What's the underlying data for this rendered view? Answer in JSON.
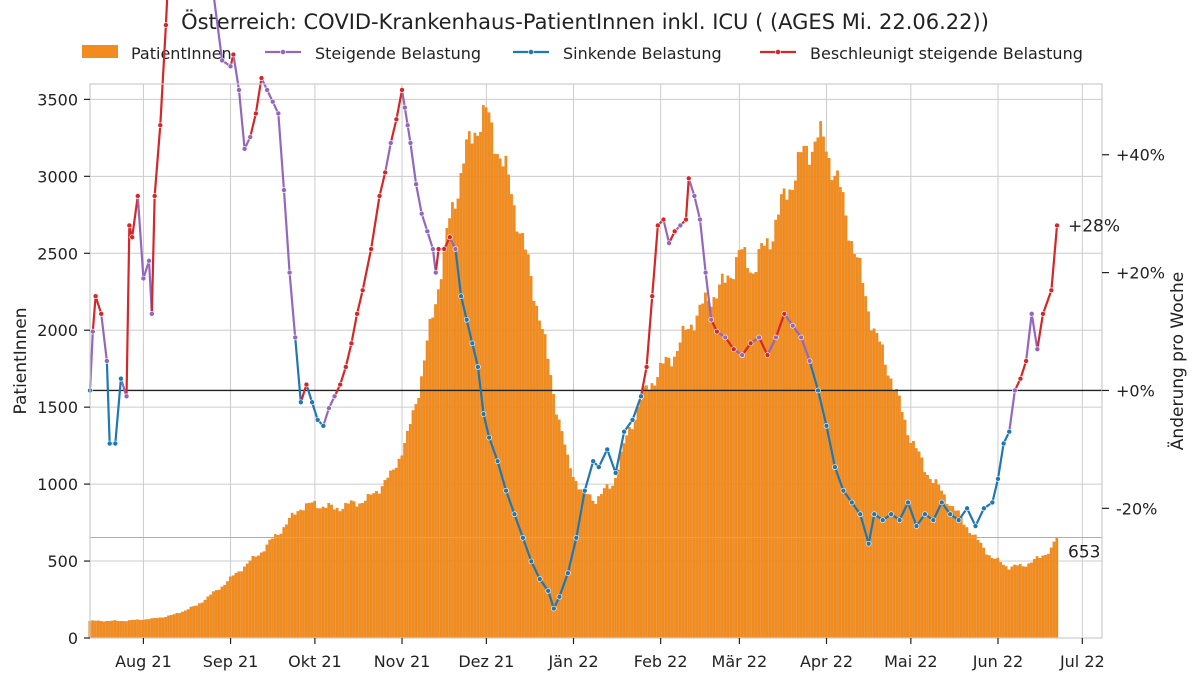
{
  "chart_data": {
    "type": "bar+line",
    "title": "Österreich: COVID-Krankenhaus-PatientInnen inkl. ICU ( (AGES Mi. 22.06.22))",
    "ylabel_left": "PatientInnen",
    "ylabel_right": "Änderung pro Woche",
    "ylim_left": [
      0,
      3600
    ],
    "ylim_right_percent": [
      -42,
      52
    ],
    "legend": {
      "placement": "top",
      "entries": [
        {
          "label": "PatientInnen",
          "kind": "bar",
          "color": "#f28c1e"
        },
        {
          "label": "Steigende Belastung",
          "kind": "line",
          "color": "#9467bd"
        },
        {
          "label": "Sinkende Belastung",
          "kind": "line",
          "color": "#1f77b4"
        },
        {
          "label": "Beschleunigt steigende Belastung",
          "kind": "line",
          "color": "#d62728"
        }
      ]
    },
    "colors": {
      "bars": "#f28c1e",
      "bar_edge": "#e07b10",
      "steigend": "#9467bd",
      "sinkend": "#1f77b4",
      "beschleunigt": "#d62728",
      "zero_line": "#222222",
      "current_line": "#f0a040",
      "grid": "#cccccc"
    },
    "x_start_date": "2021-07-13",
    "x_end_date": "2022-07-08",
    "last_data_date": "2022-06-22",
    "x_ticks": [
      {
        "label": "Aug 21",
        "date": "2021-08-01"
      },
      {
        "label": "Sep 21",
        "date": "2021-09-01"
      },
      {
        "label": "Okt 21",
        "date": "2021-10-01"
      },
      {
        "label": "Nov 21",
        "date": "2021-11-01"
      },
      {
        "label": "Dez 21",
        "date": "2021-12-01"
      },
      {
        "label": "Jän 22",
        "date": "2022-01-01"
      },
      {
        "label": "Feb 22",
        "date": "2022-02-01"
      },
      {
        "label": "Mär 22",
        "date": "2022-03-01"
      },
      {
        "label": "Apr 22",
        "date": "2022-04-01"
      },
      {
        "label": "Mai 22",
        "date": "2022-05-01"
      },
      {
        "label": "Jun 22",
        "date": "2022-06-01"
      },
      {
        "label": "Jul 22",
        "date": "2022-07-01"
      }
    ],
    "y_ticks_left": [
      {
        "value": 0,
        "label": "0"
      },
      {
        "value": 500,
        "label": "500"
      },
      {
        "value": 1000,
        "label": "1000"
      },
      {
        "value": 1500,
        "label": "1500"
      },
      {
        "value": 2000,
        "label": "2000"
      },
      {
        "value": 2500,
        "label": "2500"
      },
      {
        "value": 3000,
        "label": "3000"
      },
      {
        "value": 3500,
        "label": "3500"
      }
    ],
    "y_ticks_right": [
      {
        "value": -20,
        "label": "-20%"
      },
      {
        "value": 0,
        "label": "+0%"
      },
      {
        "value": 20,
        "label": "+20%"
      },
      {
        "value": 40,
        "label": "+40%"
      }
    ],
    "bar_anchors": [
      [
        "2021-07-13",
        110
      ],
      [
        "2021-07-25",
        110
      ],
      [
        "2021-08-05",
        125
      ],
      [
        "2021-08-12",
        150
      ],
      [
        "2021-08-20",
        210
      ],
      [
        "2021-08-28",
        320
      ],
      [
        "2021-09-05",
        450
      ],
      [
        "2021-09-12",
        560
      ],
      [
        "2021-09-20",
        720
      ],
      [
        "2021-09-26",
        850
      ],
      [
        "2021-10-01",
        870
      ],
      [
        "2021-10-08",
        840
      ],
      [
        "2021-10-14",
        870
      ],
      [
        "2021-10-20",
        900
      ],
      [
        "2021-10-28",
        1050
      ],
      [
        "2021-11-03",
        1300
      ],
      [
        "2021-11-08",
        1700
      ],
      [
        "2021-11-13",
        2200
      ],
      [
        "2021-11-18",
        2700
      ],
      [
        "2021-11-23",
        3100
      ],
      [
        "2021-11-28",
        3350
      ],
      [
        "2021-12-01",
        3400
      ],
      [
        "2021-12-05",
        3200
      ],
      [
        "2021-12-10",
        2900
      ],
      [
        "2021-12-15",
        2500
      ],
      [
        "2021-12-20",
        2100
      ],
      [
        "2021-12-25",
        1600
      ],
      [
        "2021-12-30",
        1150
      ],
      [
        "2022-01-04",
        950
      ],
      [
        "2022-01-09",
        900
      ],
      [
        "2022-01-15",
        1000
      ],
      [
        "2022-01-20",
        1300
      ],
      [
        "2022-01-25",
        1550
      ],
      [
        "2022-01-31",
        1720
      ],
      [
        "2022-02-06",
        1850
      ],
      [
        "2022-02-12",
        2050
      ],
      [
        "2022-02-18",
        2200
      ],
      [
        "2022-02-24",
        2300
      ],
      [
        "2022-03-01",
        2500
      ],
      [
        "2022-03-06",
        2400
      ],
      [
        "2022-03-12",
        2600
      ],
      [
        "2022-03-18",
        2900
      ],
      [
        "2022-03-24",
        3150
      ],
      [
        "2022-03-29",
        3250
      ],
      [
        "2022-04-01",
        3200
      ],
      [
        "2022-04-06",
        2900
      ],
      [
        "2022-04-12",
        2450
      ],
      [
        "2022-04-18",
        2000
      ],
      [
        "2022-04-24",
        1700
      ],
      [
        "2022-04-30",
        1350
      ],
      [
        "2022-05-06",
        1100
      ],
      [
        "2022-05-12",
        950
      ],
      [
        "2022-05-18",
        800
      ],
      [
        "2022-05-24",
        650
      ],
      [
        "2022-05-30",
        520
      ],
      [
        "2022-06-05",
        460
      ],
      [
        "2022-06-10",
        470
      ],
      [
        "2022-06-16",
        520
      ],
      [
        "2022-06-20",
        580
      ],
      [
        "2022-06-22",
        653
      ]
    ],
    "change_series": [
      [
        "2021-07-13",
        0,
        "sinkend"
      ],
      [
        "2021-07-14",
        10,
        "steigend"
      ],
      [
        "2021-07-15",
        16,
        "beschleunigt"
      ],
      [
        "2021-07-17",
        13,
        "beschleunigt"
      ],
      [
        "2021-07-19",
        5,
        "steigend"
      ],
      [
        "2021-07-20",
        -9,
        "sinkend"
      ],
      [
        "2021-07-22",
        -9,
        "sinkend"
      ],
      [
        "2021-07-24",
        2,
        "sinkend"
      ],
      [
        "2021-07-26",
        -1,
        "steigend"
      ],
      [
        "2021-07-27",
        28,
        "beschleunigt"
      ],
      [
        "2021-07-28",
        26,
        "beschleunigt"
      ],
      [
        "2021-07-30",
        33,
        "beschleunigt"
      ],
      [
        "2021-08-01",
        19,
        "steigend"
      ],
      [
        "2021-08-03",
        22,
        "steigend"
      ],
      [
        "2021-08-04",
        13,
        "steigend"
      ],
      [
        "2021-08-05",
        33,
        "beschleunigt"
      ],
      [
        "2021-08-07",
        45,
        "beschleunigt"
      ],
      [
        "2021-08-09",
        62,
        "beschleunigt"
      ],
      [
        "2021-08-11",
        82,
        "beschleunigt"
      ],
      [
        "2021-08-12",
        94,
        "steigend"
      ],
      [
        "2021-08-13",
        85,
        "steigend"
      ],
      [
        "2021-08-15",
        91,
        "beschleunigt"
      ],
      [
        "2021-08-16",
        87,
        "steigend"
      ],
      [
        "2021-08-17",
        94,
        "steigend"
      ],
      [
        "2021-08-18",
        88,
        "steigend"
      ],
      [
        "2021-08-19",
        94,
        "beschleunigt"
      ],
      [
        "2021-08-20",
        90,
        "steigend"
      ],
      [
        "2021-08-22",
        88,
        "steigend"
      ],
      [
        "2021-08-24",
        83,
        "steigend"
      ],
      [
        "2021-08-26",
        67,
        "steigend"
      ],
      [
        "2021-08-29",
        56,
        "steigend"
      ],
      [
        "2021-09-01",
        55,
        "steigend"
      ],
      [
        "2021-09-02",
        57,
        "beschleunigt"
      ],
      [
        "2021-09-04",
        51,
        "steigend"
      ],
      [
        "2021-09-06",
        41,
        "steigend"
      ],
      [
        "2021-09-08",
        43,
        "steigend"
      ],
      [
        "2021-09-10",
        47,
        "beschleunigt"
      ],
      [
        "2021-09-12",
        53,
        "beschleunigt"
      ],
      [
        "2021-09-14",
        51,
        "steigend"
      ],
      [
        "2021-09-16",
        49,
        "steigend"
      ],
      [
        "2021-09-18",
        47,
        "steigend"
      ],
      [
        "2021-09-20",
        34,
        "steigend"
      ],
      [
        "2021-09-22",
        20,
        "steigend"
      ],
      [
        "2021-09-24",
        9,
        "steigend"
      ],
      [
        "2021-09-26",
        -2,
        "sinkend"
      ],
      [
        "2021-09-28",
        1,
        "beschleunigt"
      ],
      [
        "2021-09-30",
        -2,
        "sinkend"
      ],
      [
        "2021-10-02",
        -5,
        "sinkend"
      ],
      [
        "2021-10-04",
        -6,
        "sinkend"
      ],
      [
        "2021-10-06",
        -3,
        "steigend"
      ],
      [
        "2021-10-08",
        -1,
        "steigend"
      ],
      [
        "2021-10-10",
        1,
        "beschleunigt"
      ],
      [
        "2021-10-12",
        4,
        "beschleunigt"
      ],
      [
        "2021-10-14",
        8,
        "beschleunigt"
      ],
      [
        "2021-10-16",
        13,
        "beschleunigt"
      ],
      [
        "2021-10-18",
        17,
        "beschleunigt"
      ],
      [
        "2021-10-21",
        24,
        "beschleunigt"
      ],
      [
        "2021-10-24",
        33,
        "beschleunigt"
      ],
      [
        "2021-10-26",
        37,
        "beschleunigt"
      ],
      [
        "2021-10-28",
        42,
        "steigend"
      ],
      [
        "2021-10-30",
        46,
        "beschleunigt"
      ],
      [
        "2021-11-01",
        51,
        "beschleunigt"
      ],
      [
        "2021-11-02",
        48,
        "steigend"
      ],
      [
        "2021-11-03",
        45,
        "steigend"
      ],
      [
        "2021-11-04",
        42,
        "steigend"
      ],
      [
        "2021-11-06",
        35,
        "steigend"
      ],
      [
        "2021-11-08",
        30,
        "steigend"
      ],
      [
        "2021-11-10",
        27,
        "steigend"
      ],
      [
        "2021-11-12",
        24,
        "steigend"
      ],
      [
        "2021-11-13",
        20,
        "steigend"
      ],
      [
        "2021-11-14",
        24,
        "beschleunigt"
      ],
      [
        "2021-11-16",
        24,
        "beschleunigt"
      ],
      [
        "2021-11-18",
        26,
        "beschleunigt"
      ],
      [
        "2021-11-20",
        24,
        "steigend"
      ],
      [
        "2021-11-22",
        16,
        "sinkend"
      ],
      [
        "2021-11-24",
        12,
        "sinkend"
      ],
      [
        "2021-11-26",
        8,
        "sinkend"
      ],
      [
        "2021-11-28",
        4,
        "sinkend"
      ],
      [
        "2021-11-30",
        -4,
        "sinkend"
      ],
      [
        "2021-12-02",
        -8,
        "sinkend"
      ],
      [
        "2021-12-05",
        -12,
        "sinkend"
      ],
      [
        "2021-12-08",
        -17,
        "sinkend"
      ],
      [
        "2021-12-11",
        -21,
        "sinkend"
      ],
      [
        "2021-12-14",
        -25,
        "sinkend"
      ],
      [
        "2021-12-17",
        -29,
        "sinkend"
      ],
      [
        "2021-12-20",
        -32,
        "sinkend"
      ],
      [
        "2021-12-23",
        -34,
        "sinkend"
      ],
      [
        "2021-12-25",
        -37,
        "sinkend"
      ],
      [
        "2021-12-27",
        -35,
        "sinkend"
      ],
      [
        "2021-12-30",
        -31,
        "sinkend"
      ],
      [
        "2022-01-02",
        -25,
        "sinkend"
      ],
      [
        "2022-01-05",
        -17,
        "sinkend"
      ],
      [
        "2022-01-08",
        -12,
        "sinkend"
      ],
      [
        "2022-01-10",
        -13,
        "sinkend"
      ],
      [
        "2022-01-13",
        -10,
        "sinkend"
      ],
      [
        "2022-01-16",
        -14,
        "sinkend"
      ],
      [
        "2022-01-19",
        -7,
        "sinkend"
      ],
      [
        "2022-01-22",
        -5,
        "sinkend"
      ],
      [
        "2022-01-25",
        -1,
        "sinkend"
      ],
      [
        "2022-01-27",
        4,
        "beschleunigt"
      ],
      [
        "2022-01-29",
        16,
        "beschleunigt"
      ],
      [
        "2022-01-31",
        28,
        "beschleunigt"
      ],
      [
        "2022-02-02",
        29,
        "beschleunigt"
      ],
      [
        "2022-02-04",
        25,
        "steigend"
      ],
      [
        "2022-02-06",
        27,
        "beschleunigt"
      ],
      [
        "2022-02-08",
        28,
        "steigend"
      ],
      [
        "2022-02-10",
        29,
        "beschleunigt"
      ],
      [
        "2022-02-11",
        36,
        "beschleunigt"
      ],
      [
        "2022-02-13",
        33,
        "steigend"
      ],
      [
        "2022-02-15",
        29,
        "steigend"
      ],
      [
        "2022-02-17",
        20,
        "steigend"
      ],
      [
        "2022-02-19",
        12,
        "steigend"
      ],
      [
        "2022-02-21",
        10,
        "beschleunigt"
      ],
      [
        "2022-02-24",
        9,
        "steigend"
      ],
      [
        "2022-02-27",
        7,
        "beschleunigt"
      ],
      [
        "2022-03-02",
        6,
        "steigend"
      ],
      [
        "2022-03-05",
        8,
        "beschleunigt"
      ],
      [
        "2022-03-08",
        9,
        "steigend"
      ],
      [
        "2022-03-11",
        6,
        "beschleunigt"
      ],
      [
        "2022-03-14",
        9,
        "steigend"
      ],
      [
        "2022-03-17",
        13,
        "beschleunigt"
      ],
      [
        "2022-03-20",
        11,
        "steigend"
      ],
      [
        "2022-03-23",
        9,
        "steigend"
      ],
      [
        "2022-03-26",
        5,
        "steigend"
      ],
      [
        "2022-03-29",
        0,
        "sinkend"
      ],
      [
        "2022-04-01",
        -6,
        "sinkend"
      ],
      [
        "2022-04-04",
        -13,
        "sinkend"
      ],
      [
        "2022-04-07",
        -17,
        "sinkend"
      ],
      [
        "2022-04-10",
        -19,
        "sinkend"
      ],
      [
        "2022-04-13",
        -21,
        "sinkend"
      ],
      [
        "2022-04-16",
        -26,
        "sinkend"
      ],
      [
        "2022-04-18",
        -21,
        "sinkend"
      ],
      [
        "2022-04-21",
        -22,
        "sinkend"
      ],
      [
        "2022-04-24",
        -21,
        "sinkend"
      ],
      [
        "2022-04-27",
        -22,
        "sinkend"
      ],
      [
        "2022-04-30",
        -19,
        "sinkend"
      ],
      [
        "2022-05-03",
        -23,
        "sinkend"
      ],
      [
        "2022-05-06",
        -21,
        "sinkend"
      ],
      [
        "2022-05-09",
        -22,
        "sinkend"
      ],
      [
        "2022-05-12",
        -19,
        "sinkend"
      ],
      [
        "2022-05-15",
        -21,
        "sinkend"
      ],
      [
        "2022-05-18",
        -22,
        "sinkend"
      ],
      [
        "2022-05-21",
        -20,
        "sinkend"
      ],
      [
        "2022-05-24",
        -23,
        "sinkend"
      ],
      [
        "2022-05-27",
        -20,
        "sinkend"
      ],
      [
        "2022-05-30",
        -19,
        "sinkend"
      ],
      [
        "2022-06-01",
        -15,
        "sinkend"
      ],
      [
        "2022-06-03",
        -9,
        "sinkend"
      ],
      [
        "2022-06-05",
        -7,
        "sinkend"
      ],
      [
        "2022-06-07",
        0,
        "steigend"
      ],
      [
        "2022-06-09",
        2,
        "beschleunigt"
      ],
      [
        "2022-06-11",
        5,
        "beschleunigt"
      ],
      [
        "2022-06-13",
        13,
        "steigend"
      ],
      [
        "2022-06-15",
        7,
        "steigend"
      ],
      [
        "2022-06-17",
        13,
        "beschleunigt"
      ],
      [
        "2022-06-20",
        17,
        "beschleunigt"
      ],
      [
        "2022-06-22",
        28,
        "beschleunigt"
      ]
    ],
    "annotations": {
      "last_change_label": "+28%",
      "last_value_label": "653",
      "last_value": 653,
      "last_change": 28
    }
  }
}
